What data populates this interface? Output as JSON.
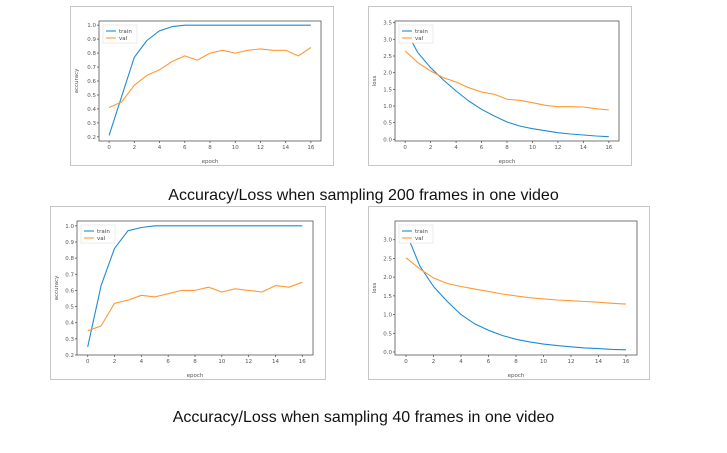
{
  "captions": {
    "top": "Accuracy/Loss when sampling 200 frames in one video",
    "bottom": "Accuracy/Loss when sampling 40 frames in one video"
  },
  "colors": {
    "train": "#1f8ccf",
    "val": "#ff9933"
  },
  "chart_data": [
    {
      "type": "line",
      "title": "",
      "xlabel": "epoch",
      "ylabel": "accuracy",
      "xlim": [
        -0.8,
        16.8
      ],
      "ylim": [
        0.17,
        1.03
      ],
      "xticks": [
        0,
        2,
        4,
        6,
        8,
        10,
        12,
        14,
        16
      ],
      "yticks": [
        0.2,
        0.3,
        0.4,
        0.5,
        0.6,
        0.7,
        0.8,
        0.9,
        1.0
      ],
      "ytick_labels": [
        "0.2",
        "0.3",
        "0.4",
        "0.5",
        "0.6",
        "0.7",
        "0.8",
        "0.9",
        "1.0"
      ],
      "legend": "top-left",
      "x": [
        0,
        1,
        2,
        3,
        4,
        5,
        6,
        7,
        8,
        9,
        10,
        11,
        12,
        13,
        14,
        15,
        16
      ],
      "series": [
        {
          "name": "train",
          "values": [
            0.21,
            0.49,
            0.77,
            0.89,
            0.96,
            0.99,
            1.0,
            1.0,
            1.0,
            1.0,
            1.0,
            1.0,
            1.0,
            1.0,
            1.0,
            1.0,
            1.0
          ]
        },
        {
          "name": "val",
          "values": [
            0.41,
            0.45,
            0.57,
            0.64,
            0.68,
            0.74,
            0.78,
            0.75,
            0.8,
            0.82,
            0.8,
            0.82,
            0.83,
            0.82,
            0.82,
            0.78,
            0.84
          ]
        }
      ]
    },
    {
      "type": "line",
      "title": "",
      "xlabel": "epoch",
      "ylabel": "loss",
      "xlim": [
        -0.8,
        16.8
      ],
      "ylim": [
        -0.05,
        3.55
      ],
      "xticks": [
        0,
        2,
        4,
        6,
        8,
        10,
        12,
        14,
        16
      ],
      "yticks": [
        0.0,
        0.5,
        1.0,
        1.5,
        2.0,
        2.5,
        3.0,
        3.5
      ],
      "ytick_labels": [
        "0.0",
        "0.5",
        "1.0",
        "1.5",
        "2.0",
        "2.5",
        "3.0",
        "3.5"
      ],
      "legend": "top-left",
      "x": [
        0,
        1,
        2,
        3,
        4,
        5,
        6,
        7,
        8,
        9,
        10,
        11,
        12,
        13,
        14,
        15,
        16
      ],
      "series": [
        {
          "name": "train",
          "values": [
            3.3,
            2.6,
            2.15,
            1.78,
            1.45,
            1.15,
            0.9,
            0.7,
            0.52,
            0.4,
            0.32,
            0.26,
            0.2,
            0.16,
            0.13,
            0.1,
            0.08
          ]
        },
        {
          "name": "val",
          "values": [
            2.65,
            2.3,
            2.05,
            1.85,
            1.72,
            1.55,
            1.42,
            1.35,
            1.2,
            1.17,
            1.1,
            1.02,
            0.98,
            0.98,
            0.97,
            0.92,
            0.88
          ]
        }
      ]
    },
    {
      "type": "line",
      "title": "",
      "xlabel": "epoch",
      "ylabel": "accuracy",
      "xlim": [
        -0.8,
        16.8
      ],
      "ylim": [
        0.2,
        1.03
      ],
      "xticks": [
        0,
        2,
        4,
        6,
        8,
        10,
        12,
        14,
        16
      ],
      "yticks": [
        0.2,
        0.3,
        0.4,
        0.5,
        0.6,
        0.7,
        0.8,
        0.9,
        1.0
      ],
      "ytick_labels": [
        "0.2",
        "0.3",
        "0.4",
        "0.5",
        "0.6",
        "0.7",
        "0.8",
        "0.9",
        "1.0"
      ],
      "legend": "top-left",
      "x": [
        0,
        1,
        2,
        3,
        4,
        5,
        6,
        7,
        8,
        9,
        10,
        11,
        12,
        13,
        14,
        15,
        16
      ],
      "series": [
        {
          "name": "train",
          "values": [
            0.25,
            0.63,
            0.86,
            0.97,
            0.99,
            1.0,
            1.0,
            1.0,
            1.0,
            1.0,
            1.0,
            1.0,
            1.0,
            1.0,
            1.0,
            1.0,
            1.0
          ]
        },
        {
          "name": "val",
          "values": [
            0.35,
            0.38,
            0.52,
            0.54,
            0.57,
            0.56,
            0.58,
            0.6,
            0.6,
            0.62,
            0.59,
            0.61,
            0.6,
            0.59,
            0.63,
            0.62,
            0.65
          ]
        }
      ]
    },
    {
      "type": "line",
      "title": "",
      "xlabel": "epoch",
      "ylabel": "loss",
      "xlim": [
        -0.8,
        16.8
      ],
      "ylim": [
        -0.08,
        3.5
      ],
      "xticks": [
        0,
        2,
        4,
        6,
        8,
        10,
        12,
        14,
        16
      ],
      "yticks": [
        0.0,
        0.5,
        1.0,
        1.5,
        2.0,
        2.5,
        3.0
      ],
      "ytick_labels": [
        "0.0",
        "0.5",
        "1.0",
        "1.5",
        "2.0",
        "2.5",
        "3.0"
      ],
      "legend": "top-left",
      "x": [
        0,
        1,
        2,
        3,
        4,
        5,
        6,
        7,
        8,
        9,
        10,
        11,
        12,
        13,
        14,
        15,
        16
      ],
      "series": [
        {
          "name": "train",
          "values": [
            3.2,
            2.3,
            1.75,
            1.35,
            1.0,
            0.75,
            0.58,
            0.44,
            0.34,
            0.27,
            0.21,
            0.17,
            0.14,
            0.11,
            0.09,
            0.07,
            0.06
          ]
        },
        {
          "name": "val",
          "values": [
            2.52,
            2.22,
            1.98,
            1.83,
            1.75,
            1.68,
            1.62,
            1.55,
            1.5,
            1.45,
            1.42,
            1.39,
            1.37,
            1.35,
            1.33,
            1.3,
            1.28
          ]
        }
      ]
    }
  ]
}
